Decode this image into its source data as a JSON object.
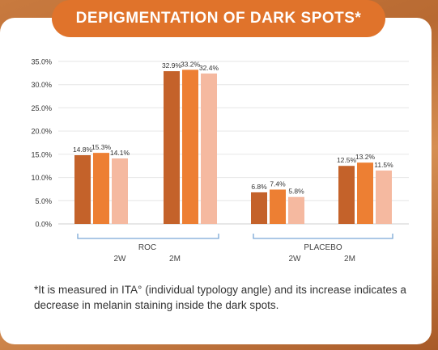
{
  "title": "DEPIGMENTATION OF DARK SPOTS*",
  "footnote": "*It is measured in ITA° (individual typology angle) and its increase indicates a decrease in melanin staining inside the dark spots.",
  "colors": {
    "series": [
      "#c4622a",
      "#ed7f33",
      "#f5b9a0"
    ],
    "title_bg": "#e0732b",
    "bracket": "#7aa8d6"
  },
  "chart_data": {
    "type": "bar",
    "y_ticks": [
      "0.0%",
      "5.0%",
      "10.0%",
      "15.0%",
      "20.0%",
      "25.0%",
      "30.0%",
      "35.0%"
    ],
    "ylim": [
      0,
      35
    ],
    "grid": true,
    "groups": [
      {
        "label": "ROC",
        "subgroups": [
          {
            "label": "2W",
            "values": [
              14.8,
              15.3,
              14.1
            ],
            "labels": [
              "14.8%",
              "15.3%",
              "14.1%"
            ]
          },
          {
            "label": "2M",
            "values": [
              32.9,
              33.2,
              32.4
            ],
            "labels": [
              "32.9%",
              "33.2%",
              "32.4%"
            ]
          }
        ]
      },
      {
        "label": "PLACEBO",
        "subgroups": [
          {
            "label": "2W",
            "values": [
              6.8,
              7.4,
              5.8
            ],
            "labels": [
              "6.8%",
              "7.4%",
              "5.8%"
            ]
          },
          {
            "label": "2M",
            "values": [
              12.5,
              13.2,
              11.5
            ],
            "labels": [
              "12.5%",
              "13.2%",
              "11.5%"
            ]
          }
        ]
      }
    ]
  }
}
